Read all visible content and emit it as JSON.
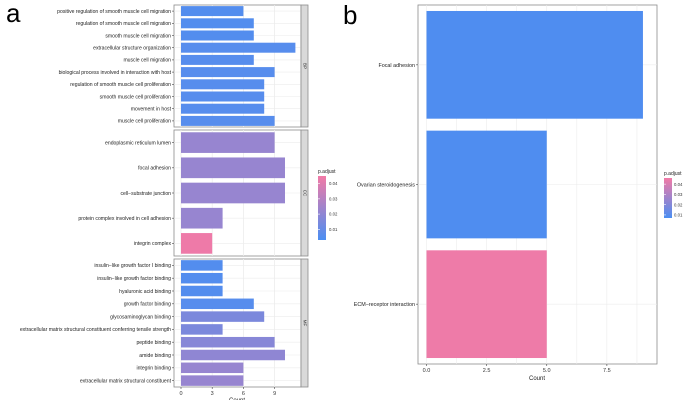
{
  "panel_labels": {
    "a": "a",
    "b": "b"
  },
  "legend_title": "p.adjust",
  "colors": {
    "low": "#4b8ef2",
    "high": "#f27aa6",
    "panel_bg": "#ffffff",
    "grid": "#ececec",
    "strip": "#d9d9d9"
  },
  "chart_data": [
    {
      "type": "bar",
      "orientation": "horizontal",
      "faceted": true,
      "xlabel": "Count",
      "xlim": [
        0,
        12
      ],
      "xticks": [
        0,
        3,
        6,
        9
      ],
      "legend": {
        "title": "p.adjust",
        "ticks": [
          "0.04",
          "0.03",
          "0.02",
          "0.01"
        ],
        "range": [
          0.003,
          0.045
        ],
        "position": "right"
      },
      "facets": [
        {
          "strip": "BP",
          "categories": [
            "positive regulation of smooth muscle cell migration",
            "regulation of smooth muscle cell migration",
            "smooth muscle cell migration",
            "extracellular structure organization",
            "muscle cell migration",
            "biological process involved in interaction with host",
            "regulation of smooth muscle cell proliferation",
            "smooth muscle cell proliferation",
            "movement in host",
            "muscle cell proliferation"
          ],
          "values": [
            6,
            7,
            7,
            11,
            7,
            9,
            8,
            8,
            8,
            9
          ],
          "p_adjust": [
            0.005,
            0.005,
            0.005,
            0.006,
            0.006,
            0.006,
            0.006,
            0.006,
            0.006,
            0.006
          ]
        },
        {
          "strip": "CC",
          "categories": [
            "endoplasmic reticulum lumen",
            "focal adhesion",
            "cell−substrate junction",
            "protein complex involved in cell adhesion",
            "integrin complex"
          ],
          "values": [
            9,
            10,
            10,
            4,
            3
          ],
          "p_adjust": [
            0.022,
            0.022,
            0.022,
            0.022,
            0.044
          ]
        },
        {
          "strip": "MF",
          "categories": [
            "insulin−like growth factor I binding",
            "insulin−like growth factor binding",
            "hyaluronic acid binding",
            "growth factor binding",
            "glycosaminoglycan binding",
            "extracellular matrix structural constituent conferring tensile strength",
            "peptide binding",
            "amide binding",
            "integrin binding",
            "extracellular matrix structural constituent"
          ],
          "values": [
            4,
            4,
            4,
            7,
            8,
            4,
            9,
            10,
            6,
            6
          ],
          "p_adjust": [
            0.005,
            0.005,
            0.005,
            0.006,
            0.015,
            0.015,
            0.018,
            0.02,
            0.022,
            0.022
          ]
        }
      ]
    },
    {
      "type": "bar",
      "orientation": "horizontal",
      "xlabel": "Count",
      "xlim": [
        0,
        9.4
      ],
      "xticks": [
        0.0,
        2.5,
        5.0,
        7.5
      ],
      "xticklabels": [
        "0.0",
        "2.5",
        "5.0",
        "7.5"
      ],
      "categories": [
        "Focal adhesion",
        "Ovarian steroidogenesis",
        "ECM−receptor interaction"
      ],
      "values": [
        9,
        5,
        5
      ],
      "p_adjust": [
        0.008,
        0.008,
        0.045
      ],
      "legend": {
        "title": "p.adjust",
        "ticks": [
          "0.04",
          "0.03",
          "0.02",
          "0.01"
        ],
        "range": [
          0.007,
          0.046
        ],
        "position": "right"
      }
    }
  ]
}
